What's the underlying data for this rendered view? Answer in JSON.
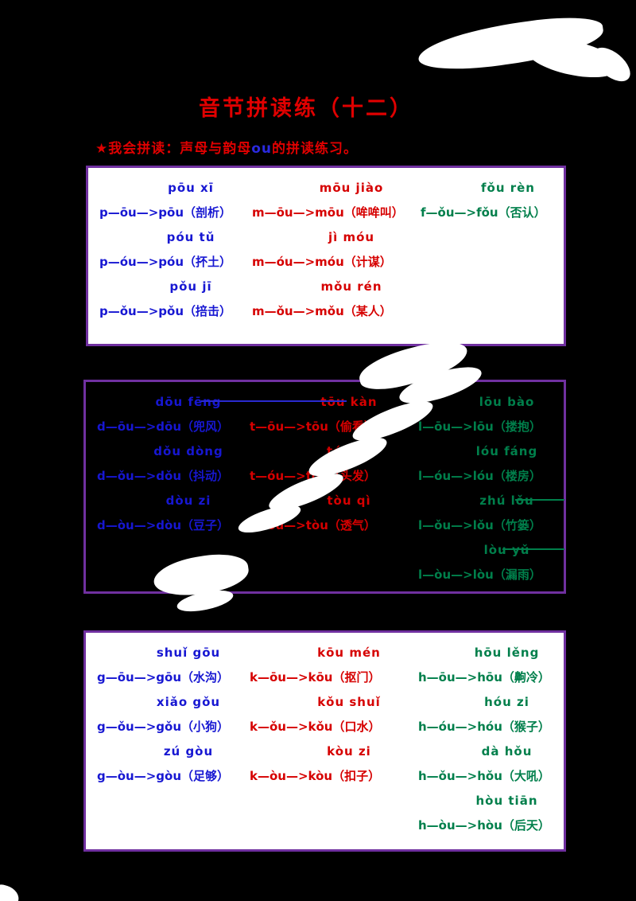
{
  "page": {
    "title": "音节拼读练（十二）",
    "star": "★",
    "subtitle_pre": "我会拼读：声母与韵母",
    "subtitle_ou": "ou",
    "subtitle_post": "的拼读练习。"
  },
  "colors": {
    "blue": "#1717d2",
    "red": "#d60000",
    "green": "#007f4b",
    "border_purple": "#7030a0",
    "background": "#000000",
    "whiteout": "#ffffff"
  },
  "box1": {
    "col_p": {
      "rows": [
        {
          "pinyin": "pōu xī",
          "formula": "p—ōu—>pōu（剖析）"
        },
        {
          "pinyin": "póu tǔ",
          "formula": "p—óu—>póu（抔土）"
        },
        {
          "pinyin": "pǒu jī",
          "formula": "p—ǒu—>pǒu（掊击）"
        }
      ]
    },
    "col_m": {
      "rows": [
        {
          "pinyin": "mōu jiào",
          "formula": "m—ōu—>mōu（哞哞叫）"
        },
        {
          "pinyin": "jì móu",
          "formula": "m—óu—>móu（计谋）"
        },
        {
          "pinyin": "mǒu rén",
          "formula": "m—ǒu—>mǒu（某人）"
        }
      ]
    },
    "col_f": {
      "rows": [
        {
          "pinyin": "fǒu rèn",
          "formula": "f—ǒu—>fǒu（否认）"
        }
      ]
    }
  },
  "box2": {
    "col_d": {
      "rows": [
        {
          "pinyin": "dōu fēng",
          "formula": "d—ōu—>dōu（兜风）"
        },
        {
          "pinyin": "dǒu dòng",
          "formula": "d—ǒu—>dǒu（抖动）"
        },
        {
          "pinyin": "dòu zi",
          "formula": "d—òu—>dòu（豆子）"
        }
      ]
    },
    "col_t": {
      "rows": [
        {
          "pinyin": "tōu kàn",
          "formula": "t—ōu—>tōu（偷看）"
        },
        {
          "pinyin": "tóu fa",
          "formula": "t—óu—>tóu（头发）"
        },
        {
          "pinyin": "tòu qì",
          "formula": "t—òu—>tòu（透气）"
        }
      ]
    },
    "col_l": {
      "rows": [
        {
          "pinyin": "lōu bào",
          "formula": "l—ōu—>lōu（搂抱）"
        },
        {
          "pinyin": "lóu fáng",
          "formula": "l—óu—>lóu（楼房）"
        },
        {
          "pinyin": "zhú lǒu",
          "formula": "l—ǒu—>lǒu（竹篓）"
        },
        {
          "pinyin": "lòu yǔ",
          "formula": "l—òu—>lòu（漏雨）"
        }
      ]
    }
  },
  "box3": {
    "col_g": {
      "rows": [
        {
          "pinyin": "shuǐ gōu",
          "formula": "g—ōu—>gōu（水沟）"
        },
        {
          "pinyin": "xiǎo gǒu",
          "formula": "g—ǒu—>gǒu（小狗）"
        },
        {
          "pinyin": "zú gòu",
          "formula": "g—òu—>gòu（足够）"
        }
      ]
    },
    "col_k": {
      "rows": [
        {
          "pinyin": "kōu mén",
          "formula": "k—ōu—>kōu（抠门）"
        },
        {
          "pinyin": "kǒu shuǐ",
          "formula": "k—ǒu—>kǒu（口水）"
        },
        {
          "pinyin": "kòu zi",
          "formula": "k—òu—>kòu（扣子）"
        }
      ]
    },
    "col_h": {
      "rows": [
        {
          "pinyin": "hōu lěng",
          "formula": "h—ōu—>hōu（齁冷）"
        },
        {
          "pinyin": "hóu zi",
          "formula": "h—óu—>hóu（猴子）"
        },
        {
          "pinyin": "dà hǒu",
          "formula": "h—ǒu—>hǒu（大吼）"
        },
        {
          "pinyin": "hòu tiān",
          "formula": "h—òu—>hòu（后天）"
        }
      ]
    }
  }
}
